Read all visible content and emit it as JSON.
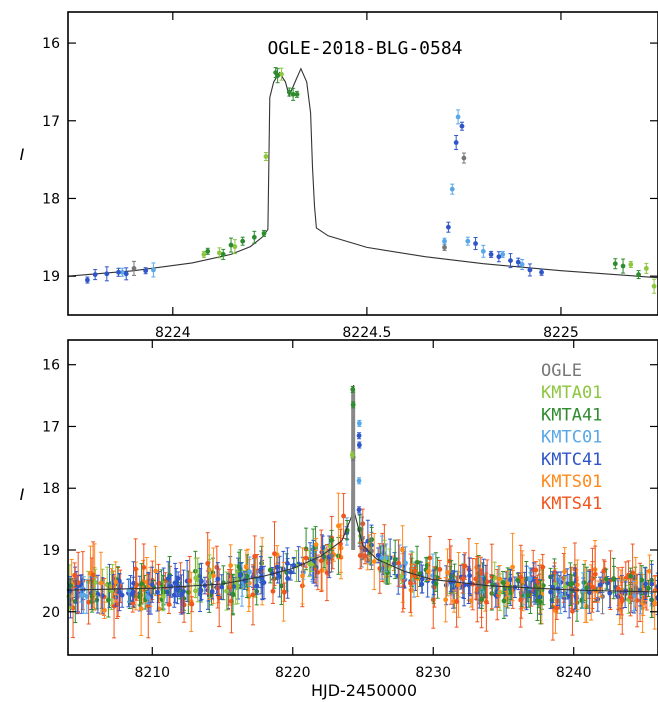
{
  "chart_data": [
    {
      "type": "scatter",
      "title": "OGLE-2018-BLG-0584",
      "ylabel": "I",
      "xlim": [
        8223.73,
        8225.25
      ],
      "ylim": [
        19.5,
        15.6
      ],
      "y_inverted": true,
      "x_ticks": [
        8224,
        8224.5,
        8225
      ],
      "x_tick_labels": [
        "8224",
        "8224.5",
        "8225"
      ],
      "y_ticks": [
        16,
        17,
        18,
        19
      ],
      "y_tick_labels": [
        "16",
        "17",
        "18",
        "19"
      ],
      "model": [
        [
          8223.73,
          19.0
        ],
        [
          8223.9,
          18.93
        ],
        [
          8224.05,
          18.83
        ],
        [
          8224.15,
          18.72
        ],
        [
          8224.2,
          18.62
        ],
        [
          8224.23,
          18.5
        ],
        [
          8224.245,
          18.4
        ],
        [
          8224.25,
          16.7
        ],
        [
          8224.26,
          16.5
        ],
        [
          8224.275,
          16.38
        ],
        [
          8224.29,
          16.5
        ],
        [
          8224.3,
          16.68
        ],
        [
          8224.315,
          16.5
        ],
        [
          8224.33,
          16.33
        ],
        [
          8224.345,
          16.5
        ],
        [
          8224.355,
          16.9
        ],
        [
          8224.36,
          17.6
        ],
        [
          8224.365,
          18.1
        ],
        [
          8224.37,
          18.38
        ],
        [
          8224.4,
          18.48
        ],
        [
          8224.5,
          18.63
        ],
        [
          8224.65,
          18.75
        ],
        [
          8224.8,
          18.84
        ],
        [
          8225.0,
          18.93
        ],
        [
          8225.25,
          19.02
        ]
      ],
      "series": [
        {
          "name": "OGLE",
          "color": "#777777",
          "points": [
            [
              8224.7,
              18.63
            ],
            [
              8224.75,
              17.48
            ],
            [
              8223.9,
              18.9
            ]
          ]
        },
        {
          "name": "KMTA01",
          "color": "#8DC63F",
          "points": [
            [
              8224.08,
              18.72
            ],
            [
              8224.12,
              18.7
            ],
            [
              8224.16,
              18.62
            ],
            [
              8224.24,
              17.46
            ],
            [
              8224.28,
              16.4
            ],
            [
              8225.18,
              18.85
            ],
            [
              8225.22,
              18.9
            ],
            [
              8225.24,
              19.13
            ]
          ]
        },
        {
          "name": "KMTA41",
          "color": "#2E8B2E",
          "points": [
            [
              8224.09,
              18.68
            ],
            [
              8224.13,
              18.72
            ],
            [
              8224.15,
              18.6
            ],
            [
              8224.18,
              18.55
            ],
            [
              8224.21,
              18.5
            ],
            [
              8224.235,
              18.45
            ],
            [
              8224.265,
              16.38
            ],
            [
              8224.27,
              16.42
            ],
            [
              8224.3,
              16.63
            ],
            [
              8224.31,
              16.66
            ],
            [
              8224.32,
              16.66
            ],
            [
              8225.14,
              18.84
            ],
            [
              8225.16,
              18.87
            ],
            [
              8225.2,
              18.98
            ]
          ]
        },
        {
          "name": "KMTC01",
          "color": "#58A8E8",
          "points": [
            [
              8224.7,
              18.55
            ],
            [
              8224.72,
              17.88
            ],
            [
              8224.735,
              16.95
            ],
            [
              8224.76,
              18.55
            ],
            [
              8224.8,
              18.68
            ],
            [
              8224.85,
              18.72
            ],
            [
              8224.9,
              18.85
            ],
            [
              8223.95,
              18.92
            ],
            [
              8223.87,
              18.95
            ]
          ]
        },
        {
          "name": "KMTC41",
          "color": "#2F55C8",
          "points": [
            [
              8223.78,
              19.05
            ],
            [
              8223.8,
              18.98
            ],
            [
              8223.83,
              18.97
            ],
            [
              8223.86,
              18.95
            ],
            [
              8223.88,
              18.97
            ],
            [
              8223.93,
              18.93
            ],
            [
              8224.71,
              18.37
            ],
            [
              8224.73,
              17.28
            ],
            [
              8224.745,
              17.07
            ],
            [
              8224.78,
              18.58
            ],
            [
              8224.82,
              18.72
            ],
            [
              8224.84,
              18.75
            ],
            [
              8224.87,
              18.8
            ],
            [
              8224.89,
              18.82
            ],
            [
              8224.92,
              18.92
            ],
            [
              8224.95,
              18.95
            ]
          ]
        }
      ]
    },
    {
      "type": "scatter",
      "ylabel": "I",
      "xlabel": "HJD-2450000",
      "xlim": [
        8204,
        8246
      ],
      "ylim": [
        20.7,
        15.6
      ],
      "y_inverted": true,
      "x_ticks": [
        8210,
        8220,
        8230,
        8240
      ],
      "x_tick_labels": [
        "8210",
        "8220",
        "8230",
        "8240"
      ],
      "y_ticks": [
        16,
        17,
        18,
        19,
        20
      ],
      "y_tick_labels": [
        "16",
        "17",
        "18",
        "19",
        "20"
      ],
      "legend": [
        "OGLE",
        "KMTA01",
        "KMTA41",
        "KMTC01",
        "KMTC41",
        "KMTS01",
        "KMTS41"
      ],
      "legend_colors": [
        "#777777",
        "#8DC63F",
        "#2E8B2E",
        "#58A8E8",
        "#2F55C8",
        "#FF8A1A",
        "#F2551E"
      ],
      "legend_position": "top-right",
      "baseline_I": 19.7,
      "model": [
        [
          8204,
          19.65
        ],
        [
          8210,
          19.62
        ],
        [
          8215,
          19.55
        ],
        [
          8218,
          19.42
        ],
        [
          8220,
          19.3
        ],
        [
          8222,
          19.1
        ],
        [
          8223.5,
          18.85
        ],
        [
          8224.2,
          18.45
        ],
        [
          8224.28,
          16.38
        ],
        [
          8224.33,
          16.33
        ],
        [
          8224.37,
          18.38
        ],
        [
          8225,
          18.93
        ],
        [
          8226,
          19.15
        ],
        [
          8228,
          19.35
        ],
        [
          8230,
          19.48
        ],
        [
          8234,
          19.58
        ],
        [
          8240,
          19.65
        ],
        [
          8246,
          19.68
        ]
      ],
      "peak_points": [
        {
          "series": "KMTA41",
          "x": 8224.27,
          "y": 16.4
        },
        {
          "series": "KMTA41",
          "x": 8224.3,
          "y": 16.65
        },
        {
          "series": "OGLE",
          "x": 8224.3,
          "y": 17.5
        },
        {
          "series": "KMTC41",
          "x": 8224.72,
          "y": 17.15
        },
        {
          "series": "KMTC41",
          "x": 8224.74,
          "y": 17.3
        },
        {
          "series": "KMTC01",
          "x": 8224.74,
          "y": 16.95
        },
        {
          "series": "KMTC01",
          "x": 8224.72,
          "y": 17.88
        },
        {
          "series": "KMTC41",
          "x": 8224.72,
          "y": 18.35
        },
        {
          "series": "KMTA01",
          "x": 8224.24,
          "y": 17.46
        }
      ]
    }
  ]
}
